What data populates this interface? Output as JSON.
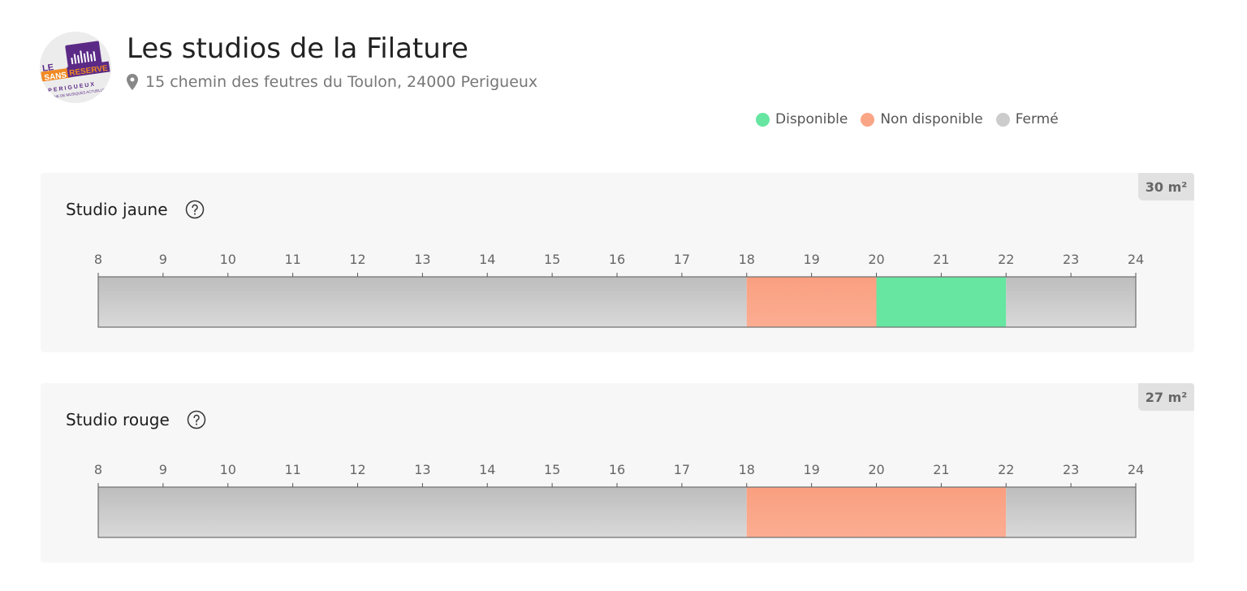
{
  "venue": {
    "title": "Les studios de la Filature",
    "address": "15 chemin des feutres du Toulon, 24000 Perigueux",
    "logo_text": [
      "LE",
      "SANS",
      "RESERVE",
      "PERIGUEUX",
      "SCENE DE MUSIQUES ACTUELLES"
    ]
  },
  "legend": [
    {
      "label": "Disponible",
      "color": "#66e6a1"
    },
    {
      "label": "Non disponible",
      "color": "#fba587"
    },
    {
      "label": "Fermé",
      "color": "#cccccc"
    }
  ],
  "colors": {
    "available": "#66e6a1",
    "unavailable": "#fba587",
    "closed": "#cccccc"
  },
  "hours": [
    "8",
    "9",
    "10",
    "11",
    "12",
    "13",
    "14",
    "15",
    "16",
    "17",
    "18",
    "19",
    "20",
    "21",
    "22",
    "23",
    "24"
  ],
  "studios": [
    {
      "name": "Studio jaune",
      "size": "30 m²",
      "segments": [
        {
          "start": 8,
          "end": 18,
          "status": "closed"
        },
        {
          "start": 18,
          "end": 20,
          "status": "unavailable"
        },
        {
          "start": 20,
          "end": 22,
          "status": "available"
        },
        {
          "start": 22,
          "end": 24,
          "status": "closed"
        }
      ]
    },
    {
      "name": "Studio rouge",
      "size": "27 m²",
      "segments": [
        {
          "start": 8,
          "end": 18,
          "status": "closed"
        },
        {
          "start": 18,
          "end": 22,
          "status": "unavailable"
        },
        {
          "start": 22,
          "end": 24,
          "status": "closed"
        }
      ]
    }
  ]
}
